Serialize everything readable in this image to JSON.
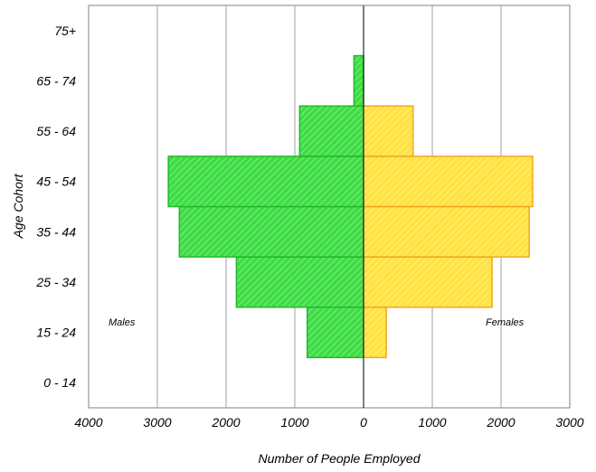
{
  "chart_data": {
    "type": "bar",
    "orientation": "horizontal-population-pyramid",
    "categories": [
      "0 - 14",
      "15 - 24",
      "25 - 34",
      "35 - 44",
      "45 - 54",
      "55 - 64",
      "65 - 74",
      "75+"
    ],
    "series": [
      {
        "name": "Males",
        "values": [
          0,
          820,
          1850,
          2680,
          2840,
          930,
          140,
          0
        ],
        "color": "#3fdc46",
        "stroke": "#22b82a"
      },
      {
        "name": "Females",
        "values": [
          0,
          330,
          1870,
          2410,
          2460,
          720,
          0,
          0
        ],
        "color": "#ffe54a",
        "stroke": "#f2a623"
      }
    ],
    "xlabel": "Number of People Employed",
    "ylabel": "Age Cohort",
    "x_ticks": [
      "4000",
      "3000",
      "2000",
      "1000",
      "0",
      "1000",
      "2000",
      "3000"
    ],
    "xlim": [
      -4000,
      3000
    ],
    "grid": true,
    "annotations": {
      "left": "Males",
      "right": "Females"
    }
  }
}
